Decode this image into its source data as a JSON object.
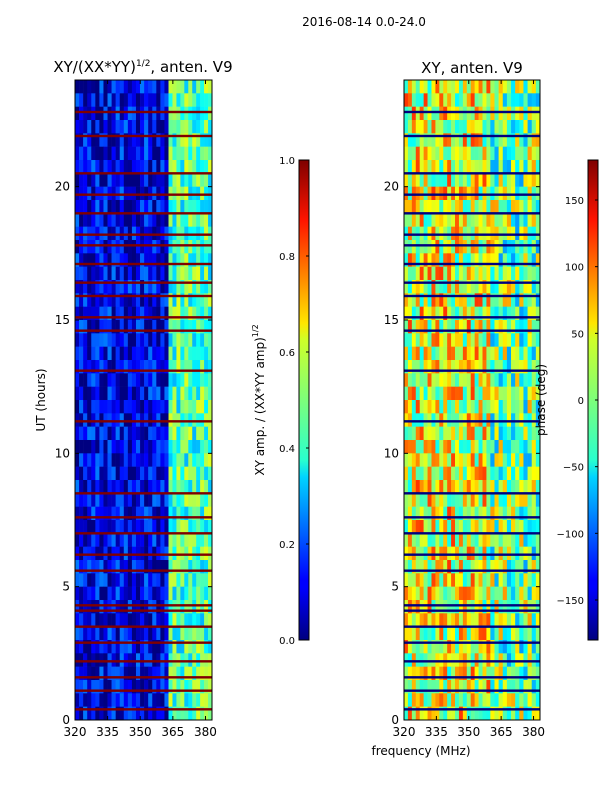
{
  "figure": {
    "suptitle": "2016-08-14 0.0-24.0",
    "xlabel": "frequency (MHz)"
  },
  "chart_data": [
    {
      "type": "heatmap",
      "title_main": "XY/(XX*YY)",
      "title_sup": "1/2",
      "title_rest": ", anten. V9",
      "ylabel": "UT (hours)",
      "xlim": [
        320,
        383
      ],
      "ylim": [
        0,
        24
      ],
      "x_ticks": [
        320,
        335,
        350,
        365,
        380
      ],
      "y_ticks": [
        0,
        5,
        10,
        15,
        20
      ],
      "colorbar": {
        "label_main": "XY amp. / (XX*YY amp)",
        "label_sup": "1/2",
        "range": [
          0.0,
          1.0
        ],
        "ticks": [
          "0.0",
          "0.2",
          "0.4",
          "0.6",
          "0.8",
          "1.0"
        ],
        "colormap": "jet"
      },
      "bands": [
        {
          "f0": 320,
          "f1": 363,
          "level": 0.1
        },
        {
          "f0": 363,
          "f1": 383,
          "level": 0.45
        }
      ],
      "flagged_hours": [
        0.4,
        1.1,
        1.6,
        2.2,
        2.9,
        3.5,
        4.1,
        4.3,
        5.6,
        6.2,
        7.0,
        7.6,
        8.5,
        11.2,
        13.1,
        14.6,
        15.1,
        15.9,
        16.4,
        17.1,
        17.8,
        18.2,
        19.0,
        19.7,
        20.5,
        21.9,
        22.8
      ],
      "flag_color": "#800000"
    },
    {
      "type": "heatmap",
      "title": "XY, anten. V9",
      "xlim": [
        320,
        383
      ],
      "ylim": [
        0,
        24
      ],
      "x_ticks": [
        320,
        335,
        350,
        365,
        380
      ],
      "y_ticks": [
        0,
        5,
        10,
        15,
        20
      ],
      "colorbar": {
        "label": "phase (deg)",
        "range": [
          -180,
          180
        ],
        "ticks": [
          "−150",
          "−100",
          "−50",
          "0",
          "50",
          "100",
          "150"
        ],
        "tick_values": [
          -150,
          -100,
          -50,
          0,
          50,
          100,
          150
        ],
        "colormap": "jet"
      },
      "bands": [
        {
          "f0": 320,
          "f1": 360,
          "level": 0.1
        },
        {
          "f0": 360,
          "f1": 383,
          "level": 0.0
        }
      ],
      "flagged_hours": [
        0.4,
        1.1,
        1.6,
        2.2,
        2.9,
        3.5,
        4.1,
        4.3,
        5.6,
        6.2,
        7.0,
        7.6,
        8.5,
        11.2,
        13.1,
        14.6,
        15.1,
        15.9,
        16.4,
        17.1,
        17.8,
        18.2,
        19.0,
        19.7,
        20.5,
        21.9,
        22.8
      ],
      "flag_color": "#00007f"
    }
  ]
}
